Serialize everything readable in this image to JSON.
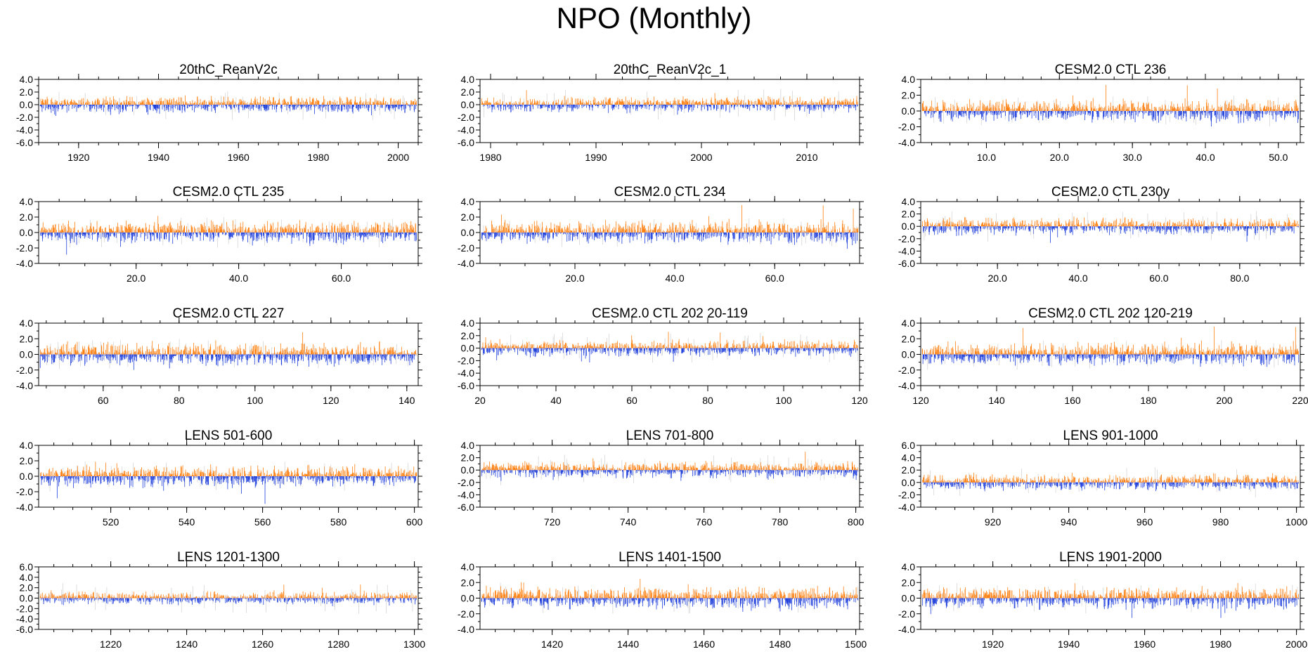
{
  "title": "NPO (Monthly)",
  "colors": {
    "positive": "#ff7f0e",
    "negative": "#1f3fdc",
    "grey": "#c8c8c8",
    "axis": "#000000"
  },
  "chart_data": [
    {
      "type": "bar",
      "title": "20thC_ReanV2c",
      "x_range": [
        1910,
        2005
      ],
      "x_ticks": [
        1920,
        1940,
        1960,
        1980,
        2000
      ],
      "x_tick_labels": [
        "1920",
        "1940",
        "1960",
        "1980",
        "2000"
      ],
      "ylim": [
        -6,
        4
      ],
      "y_ticks": [
        4,
        2,
        0,
        -2,
        -4,
        -6
      ],
      "y_tick_labels": [
        "4.0",
        "2.0",
        "0.0",
        "-2.0",
        "-4.0",
        "-6.0"
      ],
      "amplitude": 1.3,
      "seed": 11
    },
    {
      "type": "bar",
      "title": "20thC_ReanV2c_1",
      "x_range": [
        1979,
        2015
      ],
      "x_ticks": [
        1980,
        1990,
        2000,
        2010
      ],
      "x_tick_labels": [
        "1980",
        "1990",
        "2000",
        "2010"
      ],
      "ylim": [
        -6,
        4
      ],
      "y_ticks": [
        4,
        2,
        0,
        -2,
        -4,
        -6
      ],
      "y_tick_labels": [
        "4.0",
        "2.0",
        "0.0",
        "-2.0",
        "-4.0",
        "-6.0"
      ],
      "amplitude": 1.2,
      "seed": 23
    },
    {
      "type": "bar",
      "title": "CESM2.0 CTL 236",
      "x_range": [
        1,
        53
      ],
      "x_ticks": [
        10,
        20,
        30,
        40,
        50
      ],
      "x_tick_labels": [
        "10.0",
        "20.0",
        "30.0",
        "40.0",
        "50.0"
      ],
      "ylim": [
        -4,
        4
      ],
      "y_ticks": [
        4,
        2,
        0,
        -2,
        -4
      ],
      "y_tick_labels": [
        "4.0",
        "2.0",
        "0.0",
        "-2.0",
        "-4.0"
      ],
      "amplitude": 1.3,
      "seed": 37
    },
    {
      "type": "bar",
      "title": "CESM2.0 CTL 235",
      "x_range": [
        1,
        75
      ],
      "x_ticks": [
        20,
        40,
        60
      ],
      "x_tick_labels": [
        "20.0",
        "40.0",
        "60.0"
      ],
      "ylim": [
        -4,
        4
      ],
      "y_ticks": [
        4,
        2,
        0,
        -2,
        -4
      ],
      "y_tick_labels": [
        "4.0",
        "2.0",
        "0.0",
        "-2.0",
        "-4.0"
      ],
      "amplitude": 1.4,
      "seed": 41
    },
    {
      "type": "bar",
      "title": "CESM2.0 CTL 234",
      "x_range": [
        1,
        77
      ],
      "x_ticks": [
        20,
        40,
        60
      ],
      "x_tick_labels": [
        "20.0",
        "40.0",
        "60.0"
      ],
      "ylim": [
        -4,
        4
      ],
      "y_ticks": [
        4,
        2,
        0,
        -2,
        -4
      ],
      "y_tick_labels": [
        "4.0",
        "2.0",
        "0.0",
        "-2.0",
        "-4.0"
      ],
      "amplitude": 1.4,
      "seed": 53
    },
    {
      "type": "bar",
      "title": "CESM2.0 CTL 230y",
      "x_range": [
        1,
        95
      ],
      "x_ticks": [
        20,
        40,
        60,
        80
      ],
      "x_tick_labels": [
        "20.0",
        "40.0",
        "60.0",
        "80.0"
      ],
      "ylim": [
        -6,
        4
      ],
      "y_ticks": [
        4,
        2,
        0,
        -2,
        -4,
        -6
      ],
      "y_tick_labels": [
        "4.0",
        "2.0",
        "0.0",
        "-2.0",
        "-4.0",
        "-6.0"
      ],
      "amplitude": 1.3,
      "seed": 67
    },
    {
      "type": "bar",
      "title": "CESM2.0 CTL 227",
      "x_range": [
        43,
        143
      ],
      "x_ticks": [
        60,
        80,
        100,
        120,
        140
      ],
      "x_tick_labels": [
        "60",
        "80",
        "100",
        "120",
        "140"
      ],
      "ylim": [
        -4,
        4
      ],
      "y_ticks": [
        4,
        2,
        0,
        -2,
        -4
      ],
      "y_tick_labels": [
        "4.0",
        "2.0",
        "0.0",
        "-2.0",
        "-4.0"
      ],
      "amplitude": 1.4,
      "seed": 71
    },
    {
      "type": "bar",
      "title": "CESM2.0 CTL 202 20-119",
      "x_range": [
        20,
        120
      ],
      "x_ticks": [
        20,
        40,
        60,
        80,
        100,
        120
      ],
      "x_tick_labels": [
        "20",
        "40",
        "60",
        "80",
        "100",
        "120"
      ],
      "ylim": [
        -6,
        4
      ],
      "y_ticks": [
        4,
        2,
        0,
        -2,
        -4,
        -6
      ],
      "y_tick_labels": [
        "4.0",
        "2.0",
        "0.0",
        "-2.0",
        "-4.0",
        "-6.0"
      ],
      "amplitude": 1.3,
      "seed": 83
    },
    {
      "type": "bar",
      "title": "CESM2.0 CTL 202 120-219",
      "x_range": [
        120,
        220
      ],
      "x_ticks": [
        120,
        140,
        160,
        180,
        200,
        220
      ],
      "x_tick_labels": [
        "120",
        "140",
        "160",
        "180",
        "200",
        "220"
      ],
      "ylim": [
        -4,
        4
      ],
      "y_ticks": [
        4,
        2,
        0,
        -2,
        -4
      ],
      "y_tick_labels": [
        "4.0",
        "2.0",
        "0.0",
        "-2.0",
        "-4.0"
      ],
      "amplitude": 1.4,
      "seed": 97
    },
    {
      "type": "bar",
      "title": "LENS 501-600",
      "x_range": [
        501,
        601
      ],
      "x_ticks": [
        520,
        540,
        560,
        580,
        600
      ],
      "x_tick_labels": [
        "520",
        "540",
        "560",
        "580",
        "600"
      ],
      "ylim": [
        -4,
        4
      ],
      "y_ticks": [
        4,
        2,
        0,
        -2,
        -4
      ],
      "y_tick_labels": [
        "4.0",
        "2.0",
        "0.0",
        "-2.0",
        "-4.0"
      ],
      "amplitude": 1.4,
      "seed": 101
    },
    {
      "type": "bar",
      "title": "LENS 701-800",
      "x_range": [
        701,
        801
      ],
      "x_ticks": [
        720,
        740,
        760,
        780,
        800
      ],
      "x_tick_labels": [
        "720",
        "740",
        "760",
        "780",
        "800"
      ],
      "ylim": [
        -6,
        4
      ],
      "y_ticks": [
        4,
        2,
        0,
        -2,
        -4,
        -6
      ],
      "y_tick_labels": [
        "4.0",
        "2.0",
        "0.0",
        "-2.0",
        "-4.0",
        "-6.0"
      ],
      "amplitude": 1.3,
      "seed": 113
    },
    {
      "type": "bar",
      "title": "LENS 901-1000",
      "x_range": [
        901,
        1001
      ],
      "x_ticks": [
        920,
        940,
        960,
        980,
        1000
      ],
      "x_tick_labels": [
        "920",
        "940",
        "960",
        "980",
        "1000"
      ],
      "ylim": [
        -4,
        6
      ],
      "y_ticks": [
        6,
        4,
        2,
        0,
        -2,
        -4
      ],
      "y_tick_labels": [
        "6.0",
        "4.0",
        "2.0",
        "0.0",
        "-2.0",
        "-4.0"
      ],
      "amplitude": 1.3,
      "seed": 127
    },
    {
      "type": "bar",
      "title": "LENS 1201-1300",
      "x_range": [
        1201,
        1301
      ],
      "x_ticks": [
        1220,
        1240,
        1260,
        1280,
        1300
      ],
      "x_tick_labels": [
        "1220",
        "1240",
        "1260",
        "1280",
        "1300"
      ],
      "ylim": [
        -6,
        6
      ],
      "y_ticks": [
        6,
        4,
        2,
        0,
        -2,
        -4,
        -6
      ],
      "y_tick_labels": [
        "6.0",
        "4.0",
        "2.0",
        "0.0",
        "-2.0",
        "-4.0",
        "-6.0"
      ],
      "amplitude": 1.2,
      "seed": 131
    },
    {
      "type": "bar",
      "title": "LENS 1401-1500",
      "x_range": [
        1401,
        1501
      ],
      "x_ticks": [
        1420,
        1440,
        1460,
        1480,
        1500
      ],
      "x_tick_labels": [
        "1420",
        "1440",
        "1460",
        "1480",
        "1500"
      ],
      "ylim": [
        -4,
        4
      ],
      "y_ticks": [
        4,
        2,
        0,
        -2,
        -4
      ],
      "y_tick_labels": [
        "4.0",
        "2.0",
        "0.0",
        "-2.0",
        "-4.0"
      ],
      "amplitude": 1.4,
      "seed": 149
    },
    {
      "type": "bar",
      "title": "LENS 1901-2000",
      "x_range": [
        1901,
        2001
      ],
      "x_ticks": [
        1920,
        1940,
        1960,
        1980,
        2000
      ],
      "x_tick_labels": [
        "1920",
        "1940",
        "1960",
        "1980",
        "2000"
      ],
      "ylim": [
        -4,
        4
      ],
      "y_ticks": [
        4,
        2,
        0,
        -2,
        -4
      ],
      "y_tick_labels": [
        "4.0",
        "2.0",
        "0.0",
        "-2.0",
        "-4.0"
      ],
      "amplitude": 1.4,
      "seed": 157
    }
  ]
}
